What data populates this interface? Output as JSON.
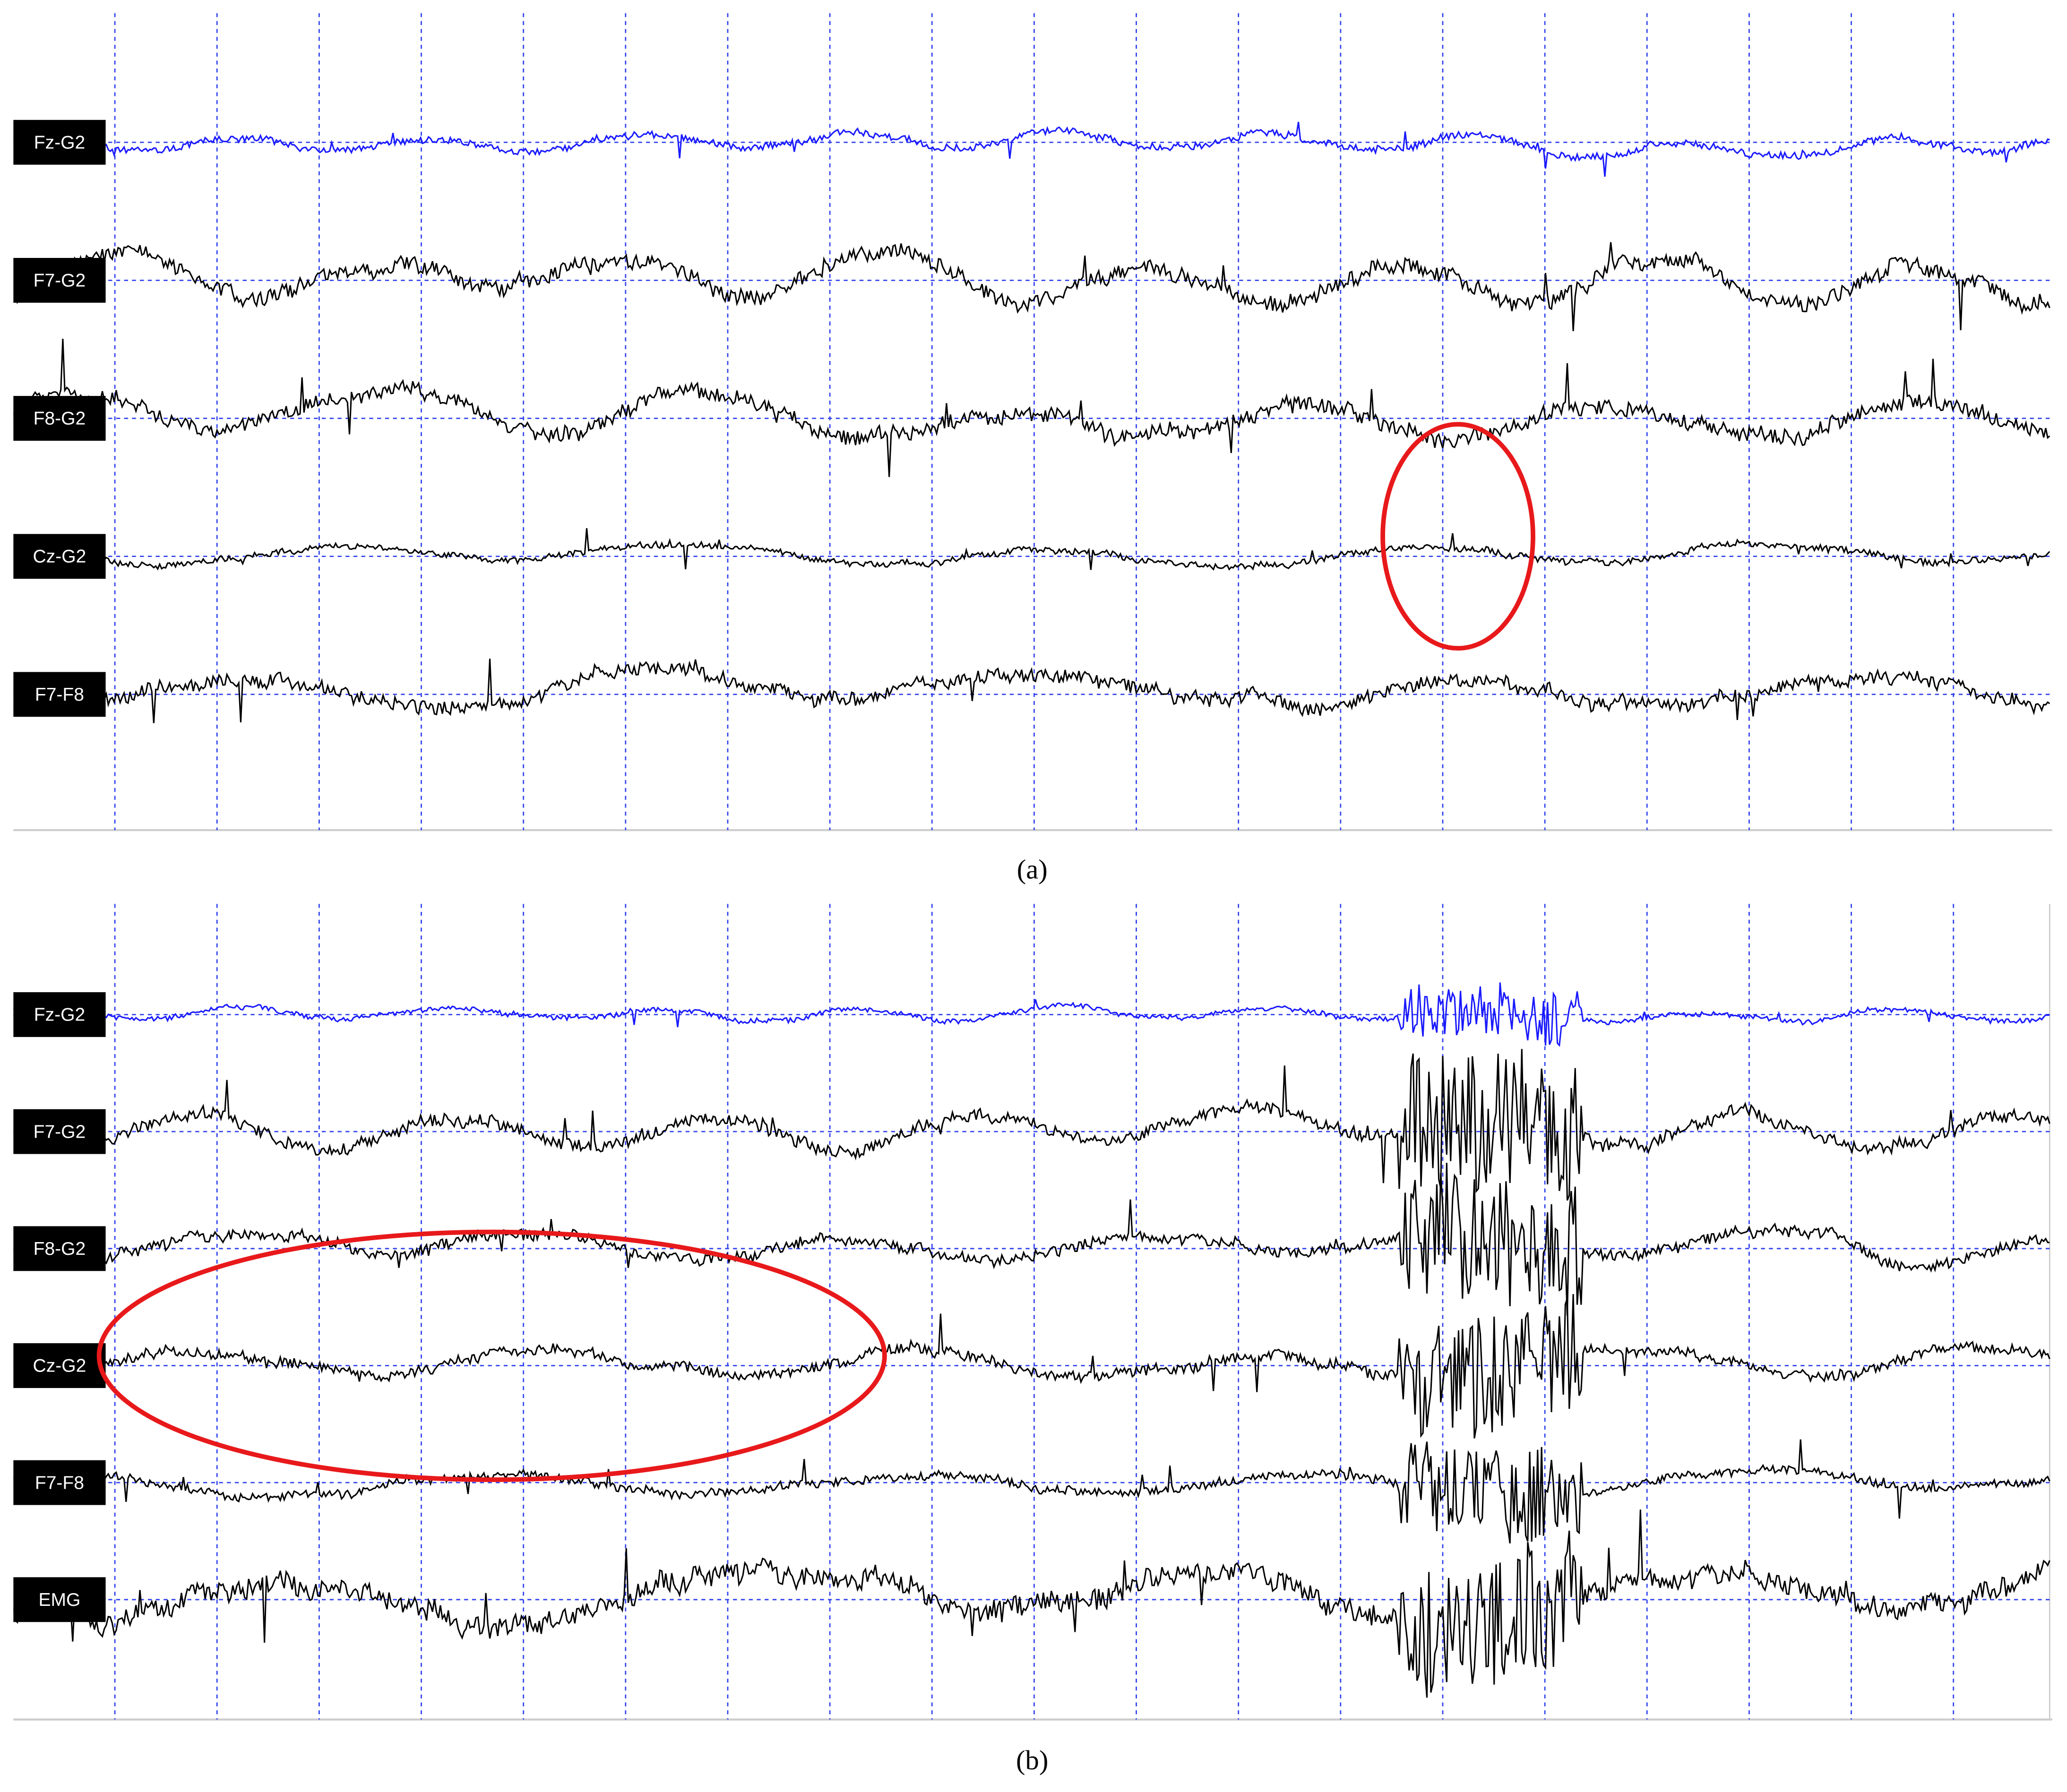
{
  "panels": [
    {
      "channels": [
        "Fz-G2",
        "F7-G2",
        "F8-G2",
        "Cz-G2",
        "F7-F8"
      ],
      "caption": "(a)"
    },
    {
      "channels": [
        "Fz-G2",
        "F7-G2",
        "F8-G2",
        "Cz-G2",
        "F7-F8",
        "EMG"
      ],
      "caption": "(b)"
    }
  ]
}
